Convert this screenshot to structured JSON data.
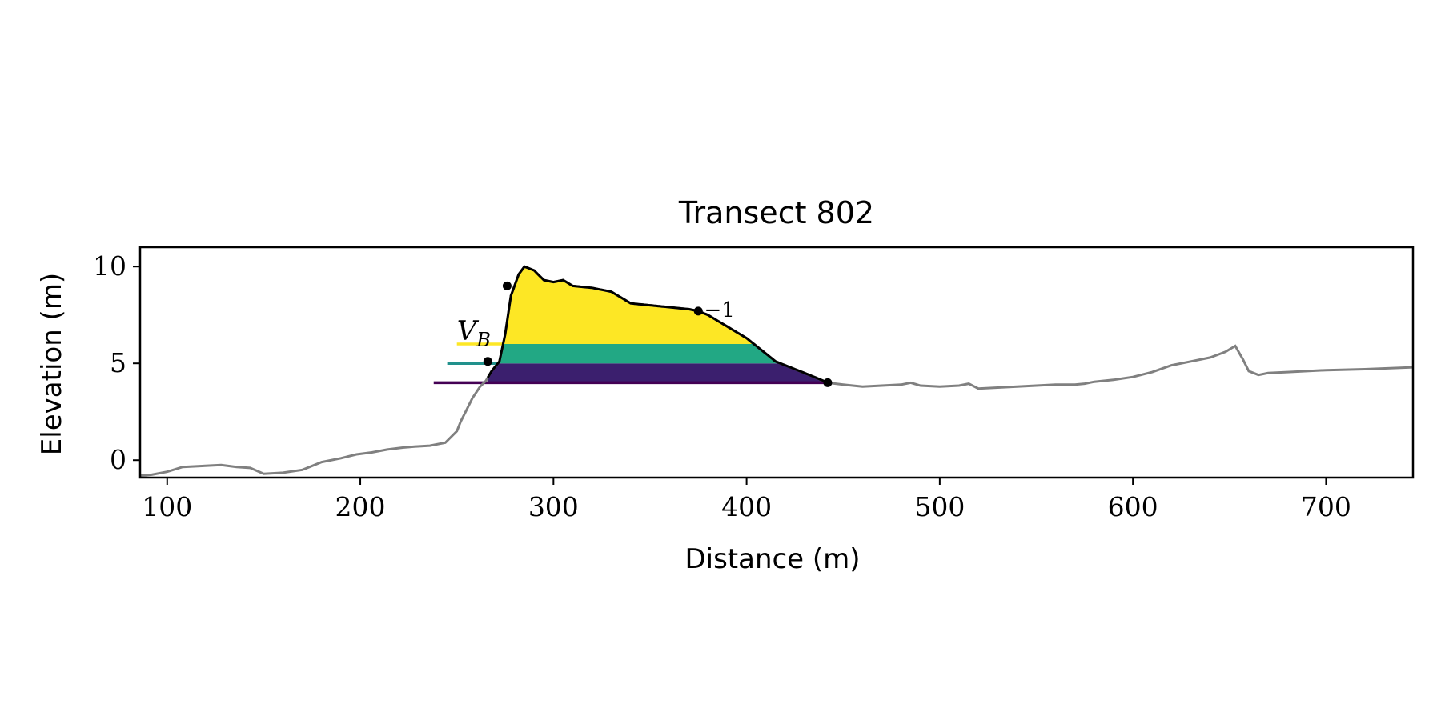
{
  "chart_data": {
    "type": "area",
    "title": "Transect 802",
    "xlabel": "Distance (m)",
    "ylabel": "Elevation (m)",
    "xlim": [
      86,
      745
    ],
    "ylim": [
      -0.9,
      11.0
    ],
    "x_ticks": [
      100,
      200,
      300,
      400,
      500,
      600,
      700
    ],
    "y_ticks": [
      0,
      5,
      10
    ],
    "grid": false,
    "legend": "none",
    "colors": {
      "terrain": "#808080",
      "feature_outline": "#000000",
      "level_low": "#440154",
      "level_mid": "#21918c",
      "level_high": "#fde725",
      "fill_low": "#3b1f6e",
      "fill_mid": "#22a884",
      "fill_high": "#fde725"
    },
    "profile": {
      "x": [
        86,
        92,
        100,
        108,
        118,
        128,
        136,
        143,
        150,
        160,
        170,
        180,
        190,
        198,
        206,
        214,
        222,
        228,
        236,
        244,
        250,
        252,
        255,
        258,
        262,
        265,
        268,
        272,
        275,
        278,
        282,
        285,
        290,
        295,
        300,
        305,
        310,
        320,
        330,
        340,
        350,
        360,
        370,
        375,
        380,
        385,
        390,
        395,
        400,
        405,
        410,
        415,
        420,
        425,
        430,
        435,
        442,
        450,
        460,
        470,
        480,
        485,
        490,
        500,
        510,
        515,
        520,
        530,
        540,
        550,
        560,
        570,
        575,
        580,
        590,
        600,
        610,
        620,
        630,
        640,
        648,
        653,
        657,
        660,
        665,
        670,
        680,
        700,
        720,
        745
      ],
      "y": [
        -0.8,
        -0.75,
        -0.6,
        -0.35,
        -0.3,
        -0.25,
        -0.35,
        -0.4,
        -0.7,
        -0.65,
        -0.5,
        -0.1,
        0.1,
        0.3,
        0.4,
        0.55,
        0.65,
        0.7,
        0.75,
        0.9,
        1.5,
        2.0,
        2.6,
        3.2,
        3.8,
        4.1,
        4.6,
        5.1,
        6.5,
        8.5,
        9.6,
        10.0,
        9.8,
        9.3,
        9.2,
        9.3,
        9.0,
        8.9,
        8.7,
        8.1,
        8.0,
        7.9,
        7.8,
        7.7,
        7.5,
        7.2,
        6.9,
        6.6,
        6.3,
        5.9,
        5.5,
        5.1,
        4.9,
        4.7,
        4.5,
        4.3,
        4.0,
        3.9,
        3.8,
        3.85,
        3.9,
        4.0,
        3.85,
        3.8,
        3.85,
        3.95,
        3.7,
        3.75,
        3.8,
        3.85,
        3.9,
        3.9,
        3.95,
        4.05,
        4.15,
        4.3,
        4.55,
        4.9,
        5.1,
        5.3,
        5.6,
        5.9,
        5.2,
        4.6,
        4.4,
        4.5,
        4.55,
        4.65,
        4.7,
        4.8
      ]
    },
    "feature_range": [
      266,
      442
    ],
    "levels": [
      {
        "name": "low",
        "elevation": 4.0,
        "start_x": 238
      },
      {
        "name": "mid",
        "elevation": 5.0,
        "start_x": 245
      },
      {
        "name": "high",
        "elevation": 6.0,
        "start_x": 250
      }
    ],
    "markers": [
      {
        "x": 266,
        "y": 5.1
      },
      {
        "x": 276,
        "y": 9.0
      },
      {
        "x": 375,
        "y": 7.7
      },
      {
        "x": 442,
        "y": 4.0
      }
    ],
    "annotations": {
      "volume_label_main": "V",
      "volume_label_sub": "B",
      "volume_label_x": 250,
      "volume_label_y": 6.2,
      "marker_label": "−1",
      "marker_label_x": 378,
      "marker_label_y": 7.4
    }
  }
}
